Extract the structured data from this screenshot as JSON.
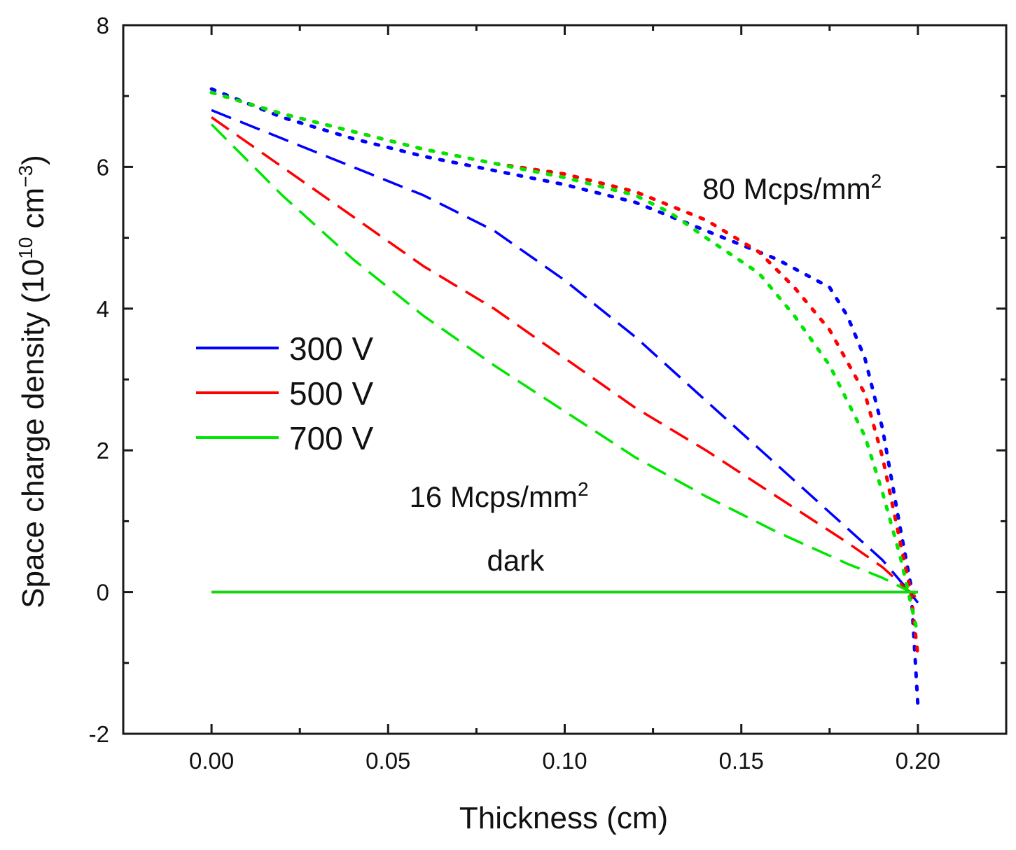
{
  "chart_data": {
    "type": "line",
    "title": "",
    "xlabel": "Thickness (cm)",
    "ylabel_main": "Space charge density (10",
    "ylabel_exp1": "10",
    "ylabel_mid": " cm",
    "ylabel_exp2": "−3",
    "ylabel_end": ")",
    "xlim": [
      -0.025,
      0.225
    ],
    "ylim": [
      -2,
      8
    ],
    "x_ticks": [
      0.0,
      0.05,
      0.1,
      0.15,
      0.2
    ],
    "x_tick_labels": [
      "0.00",
      "0.05",
      "0.10",
      "0.15",
      "0.20"
    ],
    "x_minor_ticks": [
      -0.025,
      0.025,
      0.075,
      0.125,
      0.175,
      0.225
    ],
    "y_ticks": [
      -2,
      0,
      2,
      4,
      6,
      8
    ],
    "y_tick_labels": [
      "-2",
      "0",
      "2",
      "4",
      "6",
      "8"
    ],
    "y_minor_ticks": [
      -1,
      1,
      3,
      5,
      7
    ],
    "legend": {
      "position": "middle-left",
      "entries": [
        {
          "label": "300 V",
          "color": "#0000ff"
        },
        {
          "label": "500 V",
          "color": "#ff0000"
        },
        {
          "label": "700 V",
          "color": "#00e600"
        }
      ]
    },
    "annotations": [
      {
        "text": "80 Mcps/mm",
        "sup": "2",
        "x": 0.139,
        "y": 5.55
      },
      {
        "text": "16 Mcps/mm",
        "sup": "2",
        "x": 0.056,
        "y": 1.2
      },
      {
        "text": "dark",
        "x": 0.078,
        "y": 0.3
      }
    ],
    "series": [
      {
        "name": "300 V, 16 Mcps/mm2",
        "color": "#0000ff",
        "style": "dashed",
        "x": [
          0,
          0.02,
          0.04,
          0.06,
          0.08,
          0.1,
          0.12,
          0.14,
          0.16,
          0.18,
          0.19,
          0.196,
          0.2
        ],
        "y": [
          6.8,
          6.4,
          6.0,
          5.6,
          5.1,
          4.4,
          3.6,
          2.7,
          1.8,
          0.9,
          0.45,
          0.1,
          -0.15
        ]
      },
      {
        "name": "500 V, 16 Mcps/mm2",
        "color": "#ff0000",
        "style": "dashed",
        "x": [
          0,
          0.02,
          0.04,
          0.06,
          0.08,
          0.1,
          0.12,
          0.14,
          0.16,
          0.18,
          0.19,
          0.196,
          0.2
        ],
        "y": [
          6.7,
          6.0,
          5.3,
          4.6,
          4.0,
          3.3,
          2.6,
          2.0,
          1.35,
          0.7,
          0.35,
          0.08,
          -0.1
        ]
      },
      {
        "name": "700 V, 16 Mcps/mm2",
        "color": "#00e600",
        "style": "dashed",
        "x": [
          0,
          0.02,
          0.04,
          0.06,
          0.08,
          0.1,
          0.12,
          0.14,
          0.16,
          0.18,
          0.19,
          0.196,
          0.2
        ],
        "y": [
          6.6,
          5.6,
          4.7,
          3.9,
          3.2,
          2.55,
          1.9,
          1.35,
          0.85,
          0.4,
          0.2,
          0.05,
          -0.05
        ]
      },
      {
        "name": "300 V, 80 Mcps/mm2",
        "color": "#0000ff",
        "style": "dotted",
        "x": [
          0,
          0.02,
          0.04,
          0.06,
          0.08,
          0.1,
          0.12,
          0.14,
          0.16,
          0.175,
          0.18,
          0.185,
          0.19,
          0.195,
          0.198,
          0.2
        ],
        "y": [
          7.1,
          6.7,
          6.4,
          6.15,
          5.95,
          5.75,
          5.5,
          5.1,
          4.7,
          4.3,
          3.9,
          3.3,
          2.3,
          0.9,
          0.1,
          -1.6
        ]
      },
      {
        "name": "500 V, 80 Mcps/mm2",
        "color": "#ff0000",
        "style": "dotted",
        "x": [
          0,
          0.02,
          0.04,
          0.06,
          0.08,
          0.1,
          0.12,
          0.14,
          0.155,
          0.165,
          0.175,
          0.185,
          0.19,
          0.195,
          0.198,
          0.2
        ],
        "y": [
          7.05,
          6.75,
          6.5,
          6.25,
          6.05,
          5.9,
          5.65,
          5.25,
          4.8,
          4.3,
          3.7,
          2.8,
          1.9,
          0.7,
          0.0,
          -0.9
        ]
      },
      {
        "name": "700 V, 80 Mcps/mm2",
        "color": "#00e600",
        "style": "dotted",
        "x": [
          0,
          0.02,
          0.04,
          0.06,
          0.08,
          0.1,
          0.12,
          0.13,
          0.14,
          0.155,
          0.165,
          0.175,
          0.185,
          0.19,
          0.195,
          0.2
        ],
        "y": [
          7.05,
          6.75,
          6.5,
          6.25,
          6.05,
          5.85,
          5.6,
          5.35,
          5.0,
          4.5,
          3.9,
          3.2,
          2.2,
          1.4,
          0.5,
          -0.6
        ]
      },
      {
        "name": "300 V, dark",
        "color": "#0000ff",
        "style": "solid",
        "x": [
          0,
          0.2
        ],
        "y": [
          0,
          0
        ]
      },
      {
        "name": "500 V, dark",
        "color": "#ff0000",
        "style": "solid",
        "x": [
          0,
          0.2
        ],
        "y": [
          0,
          0
        ]
      },
      {
        "name": "700 V, dark",
        "color": "#00e600",
        "style": "solid",
        "x": [
          0,
          0.2
        ],
        "y": [
          0,
          0
        ]
      }
    ]
  }
}
